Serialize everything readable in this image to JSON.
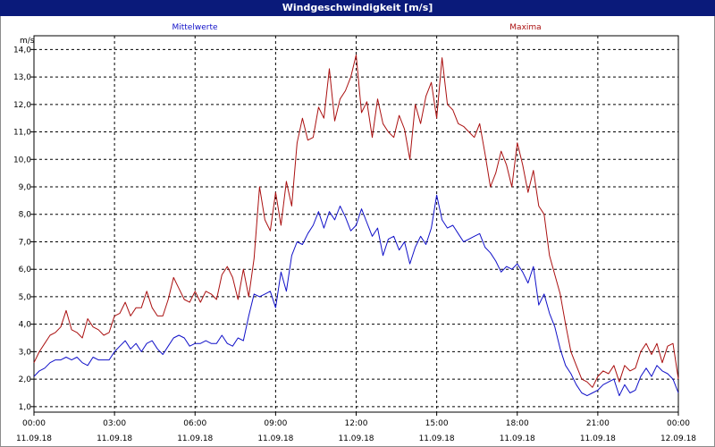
{
  "window": {
    "title": "Windgeschwindigkeit [m/s]"
  },
  "colors": {
    "titlebar": "#0a1a7a",
    "mean": "#1010c8",
    "max": "#aa1010",
    "grid": "#000000"
  },
  "chart_data": {
    "type": "line",
    "title": "Windgeschwindigkeit [m/s]",
    "ylabel": "m/s",
    "ylim": [
      0.8,
      14.5
    ],
    "y_ticks": [
      "1,0",
      "2,0",
      "3,0",
      "4,0",
      "5,0",
      "6,0",
      "7,0",
      "8,0",
      "9,0",
      "10,0",
      "11,0",
      "12,0",
      "13,0",
      "14,0"
    ],
    "x_ticks": [
      {
        "time": "00:00",
        "date": "11.09.18"
      },
      {
        "time": "03:00",
        "date": "11.09.18"
      },
      {
        "time": "06:00",
        "date": "11.09.18"
      },
      {
        "time": "09:00",
        "date": "11.09.18"
      },
      {
        "time": "12:00",
        "date": "11.09.18"
      },
      {
        "time": "15:00",
        "date": "11.09.18"
      },
      {
        "time": "18:00",
        "date": "11.09.18"
      },
      {
        "time": "21:00",
        "date": "11.09.18"
      },
      {
        "time": "00:00",
        "date": "12.09.18"
      }
    ],
    "grid": true,
    "series": [
      {
        "name": "Mittelwerte",
        "color": "#1010c8",
        "points": [
          [
            0.0,
            2.1
          ],
          [
            0.2,
            2.3
          ],
          [
            0.4,
            2.4
          ],
          [
            0.6,
            2.6
          ],
          [
            0.8,
            2.7
          ],
          [
            1.0,
            2.7
          ],
          [
            1.2,
            2.8
          ],
          [
            1.4,
            2.7
          ],
          [
            1.6,
            2.8
          ],
          [
            1.8,
            2.6
          ],
          [
            2.0,
            2.5
          ],
          [
            2.2,
            2.8
          ],
          [
            2.4,
            2.7
          ],
          [
            2.6,
            2.7
          ],
          [
            2.8,
            2.7
          ],
          [
            3.0,
            3.0
          ],
          [
            3.2,
            3.2
          ],
          [
            3.4,
            3.4
          ],
          [
            3.6,
            3.1
          ],
          [
            3.8,
            3.3
          ],
          [
            4.0,
            3.0
          ],
          [
            4.2,
            3.3
          ],
          [
            4.4,
            3.4
          ],
          [
            4.6,
            3.1
          ],
          [
            4.8,
            2.9
          ],
          [
            5.0,
            3.2
          ],
          [
            5.2,
            3.5
          ],
          [
            5.4,
            3.6
          ],
          [
            5.6,
            3.5
          ],
          [
            5.8,
            3.2
          ],
          [
            6.0,
            3.3
          ],
          [
            6.2,
            3.3
          ],
          [
            6.4,
            3.4
          ],
          [
            6.6,
            3.3
          ],
          [
            6.8,
            3.3
          ],
          [
            7.0,
            3.6
          ],
          [
            7.2,
            3.3
          ],
          [
            7.4,
            3.2
          ],
          [
            7.6,
            3.5
          ],
          [
            7.8,
            3.4
          ],
          [
            8.0,
            4.3
          ],
          [
            8.2,
            5.1
          ],
          [
            8.4,
            5.0
          ],
          [
            8.6,
            5.1
          ],
          [
            8.8,
            5.2
          ],
          [
            9.0,
            4.6
          ],
          [
            9.2,
            5.9
          ],
          [
            9.4,
            5.2
          ],
          [
            9.6,
            6.5
          ],
          [
            9.8,
            7.0
          ],
          [
            10.0,
            6.9
          ],
          [
            10.2,
            7.3
          ],
          [
            10.4,
            7.6
          ],
          [
            10.6,
            8.1
          ],
          [
            10.8,
            7.5
          ],
          [
            11.0,
            8.1
          ],
          [
            11.2,
            7.8
          ],
          [
            11.4,
            8.3
          ],
          [
            11.6,
            7.9
          ],
          [
            11.8,
            7.4
          ],
          [
            12.0,
            7.6
          ],
          [
            12.2,
            8.2
          ],
          [
            12.4,
            7.7
          ],
          [
            12.6,
            7.2
          ],
          [
            12.8,
            7.5
          ],
          [
            13.0,
            6.5
          ],
          [
            13.2,
            7.1
          ],
          [
            13.4,
            7.2
          ],
          [
            13.6,
            6.7
          ],
          [
            13.8,
            7.0
          ],
          [
            14.0,
            6.2
          ],
          [
            14.2,
            6.8
          ],
          [
            14.4,
            7.2
          ],
          [
            14.6,
            6.9
          ],
          [
            14.8,
            7.5
          ],
          [
            15.0,
            8.7
          ],
          [
            15.2,
            7.8
          ],
          [
            15.4,
            7.5
          ],
          [
            15.6,
            7.6
          ],
          [
            15.8,
            7.3
          ],
          [
            16.0,
            7.0
          ],
          [
            16.2,
            7.1
          ],
          [
            16.4,
            7.2
          ],
          [
            16.6,
            7.3
          ],
          [
            16.8,
            6.8
          ],
          [
            17.0,
            6.6
          ],
          [
            17.2,
            6.3
          ],
          [
            17.4,
            5.9
          ],
          [
            17.6,
            6.1
          ],
          [
            17.8,
            6.0
          ],
          [
            18.0,
            6.2
          ],
          [
            18.2,
            5.9
          ],
          [
            18.4,
            5.5
          ],
          [
            18.6,
            6.1
          ],
          [
            18.8,
            4.7
          ],
          [
            19.0,
            5.1
          ],
          [
            19.2,
            4.4
          ],
          [
            19.4,
            3.9
          ],
          [
            19.6,
            3.1
          ],
          [
            19.8,
            2.5
          ],
          [
            20.0,
            2.2
          ],
          [
            20.2,
            1.8
          ],
          [
            20.4,
            1.5
          ],
          [
            20.6,
            1.4
          ],
          [
            20.8,
            1.5
          ],
          [
            21.0,
            1.6
          ],
          [
            21.2,
            1.8
          ],
          [
            21.4,
            1.9
          ],
          [
            21.6,
            2.0
          ],
          [
            21.8,
            1.4
          ],
          [
            22.0,
            1.8
          ],
          [
            22.2,
            1.5
          ],
          [
            22.4,
            1.6
          ],
          [
            22.6,
            2.1
          ],
          [
            22.8,
            2.4
          ],
          [
            23.0,
            2.1
          ],
          [
            23.2,
            2.5
          ],
          [
            23.4,
            2.3
          ],
          [
            23.6,
            2.2
          ],
          [
            23.8,
            2.0
          ],
          [
            24.0,
            1.5
          ]
        ]
      },
      {
        "name": "Maxima",
        "color": "#aa1010",
        "points": [
          [
            0.0,
            2.6
          ],
          [
            0.2,
            3.0
          ],
          [
            0.4,
            3.3
          ],
          [
            0.6,
            3.6
          ],
          [
            0.8,
            3.7
          ],
          [
            1.0,
            3.9
          ],
          [
            1.2,
            4.5
          ],
          [
            1.4,
            3.8
          ],
          [
            1.6,
            3.7
          ],
          [
            1.8,
            3.5
          ],
          [
            2.0,
            4.2
          ],
          [
            2.2,
            3.9
          ],
          [
            2.4,
            3.8
          ],
          [
            2.6,
            3.6
          ],
          [
            2.8,
            3.7
          ],
          [
            3.0,
            4.3
          ],
          [
            3.2,
            4.4
          ],
          [
            3.4,
            4.8
          ],
          [
            3.6,
            4.3
          ],
          [
            3.8,
            4.6
          ],
          [
            4.0,
            4.6
          ],
          [
            4.2,
            5.2
          ],
          [
            4.4,
            4.6
          ],
          [
            4.6,
            4.3
          ],
          [
            4.8,
            4.3
          ],
          [
            5.0,
            4.9
          ],
          [
            5.2,
            5.7
          ],
          [
            5.4,
            5.3
          ],
          [
            5.6,
            4.9
          ],
          [
            5.8,
            4.8
          ],
          [
            6.0,
            5.2
          ],
          [
            6.2,
            4.8
          ],
          [
            6.4,
            5.2
          ],
          [
            6.6,
            5.1
          ],
          [
            6.8,
            4.9
          ],
          [
            7.0,
            5.8
          ],
          [
            7.2,
            6.1
          ],
          [
            7.4,
            5.7
          ],
          [
            7.6,
            4.9
          ],
          [
            7.8,
            6.0
          ],
          [
            8.0,
            5.0
          ],
          [
            8.2,
            6.4
          ],
          [
            8.4,
            9.0
          ],
          [
            8.6,
            7.8
          ],
          [
            8.8,
            7.4
          ],
          [
            9.0,
            8.8
          ],
          [
            9.2,
            7.6
          ],
          [
            9.4,
            9.2
          ],
          [
            9.6,
            8.3
          ],
          [
            9.8,
            10.6
          ],
          [
            10.0,
            11.5
          ],
          [
            10.2,
            10.7
          ],
          [
            10.4,
            10.8
          ],
          [
            10.6,
            11.9
          ],
          [
            10.8,
            11.5
          ],
          [
            11.0,
            13.3
          ],
          [
            11.2,
            11.4
          ],
          [
            11.4,
            12.2
          ],
          [
            11.6,
            12.5
          ],
          [
            11.8,
            13.0
          ],
          [
            12.0,
            13.8
          ],
          [
            12.2,
            11.7
          ],
          [
            12.4,
            12.1
          ],
          [
            12.6,
            10.8
          ],
          [
            12.8,
            12.2
          ],
          [
            13.0,
            11.3
          ],
          [
            13.2,
            11.0
          ],
          [
            13.4,
            10.8
          ],
          [
            13.6,
            11.6
          ],
          [
            13.8,
            11.1
          ],
          [
            14.0,
            10.0
          ],
          [
            14.2,
            12.0
          ],
          [
            14.4,
            11.3
          ],
          [
            14.6,
            12.3
          ],
          [
            14.8,
            12.8
          ],
          [
            15.0,
            11.5
          ],
          [
            15.2,
            13.7
          ],
          [
            15.4,
            12.0
          ],
          [
            15.6,
            11.8
          ],
          [
            15.8,
            11.3
          ],
          [
            16.0,
            11.2
          ],
          [
            16.2,
            11.0
          ],
          [
            16.4,
            10.8
          ],
          [
            16.6,
            11.3
          ],
          [
            16.8,
            10.2
          ],
          [
            17.0,
            9.0
          ],
          [
            17.2,
            9.5
          ],
          [
            17.4,
            10.3
          ],
          [
            17.6,
            9.8
          ],
          [
            17.8,
            9.0
          ],
          [
            18.0,
            10.6
          ],
          [
            18.2,
            9.8
          ],
          [
            18.4,
            8.8
          ],
          [
            18.6,
            9.6
          ],
          [
            18.8,
            8.3
          ],
          [
            19.0,
            8.0
          ],
          [
            19.2,
            6.5
          ],
          [
            19.4,
            5.8
          ],
          [
            19.6,
            5.1
          ],
          [
            19.8,
            4.0
          ],
          [
            20.0,
            3.0
          ],
          [
            20.2,
            2.5
          ],
          [
            20.4,
            2.0
          ],
          [
            20.6,
            1.9
          ],
          [
            20.8,
            1.7
          ],
          [
            21.0,
            2.1
          ],
          [
            21.2,
            2.3
          ],
          [
            21.4,
            2.2
          ],
          [
            21.6,
            2.5
          ],
          [
            21.8,
            1.9
          ],
          [
            22.0,
            2.5
          ],
          [
            22.2,
            2.3
          ],
          [
            22.4,
            2.4
          ],
          [
            22.6,
            3.0
          ],
          [
            22.8,
            3.3
          ],
          [
            23.0,
            2.9
          ],
          [
            23.2,
            3.3
          ],
          [
            23.4,
            2.6
          ],
          [
            23.6,
            3.2
          ],
          [
            23.8,
            3.3
          ],
          [
            24.0,
            2.0
          ]
        ]
      }
    ]
  }
}
